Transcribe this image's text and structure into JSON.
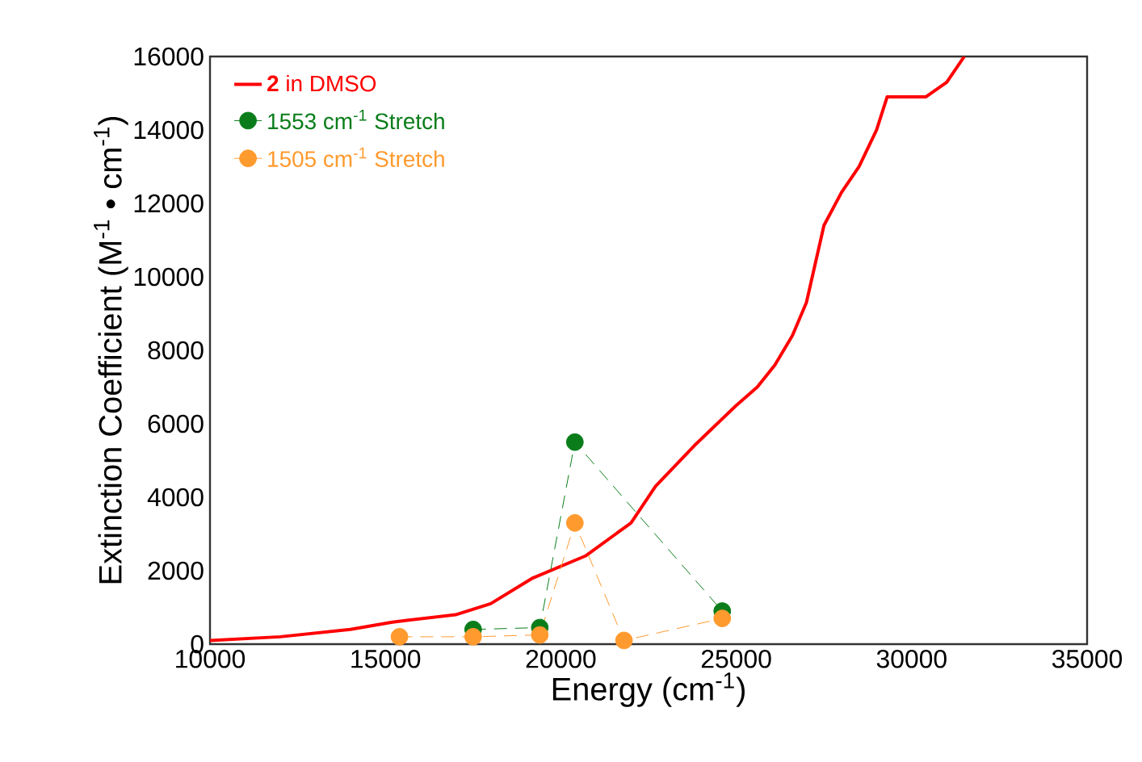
{
  "chart_data": {
    "type": "line",
    "xlabel": "Energy (cm$^{-1}$)",
    "ylabel": "Extinction Coefficient (M$^{-1}$ • cm$^{-1}$)",
    "xlim": [
      10000,
      35000
    ],
    "ylim": [
      0,
      16000
    ],
    "xticks": [
      10000,
      15000,
      20000,
      25000,
      30000,
      35000
    ],
    "yticks": [
      0,
      2000,
      4000,
      6000,
      8000,
      10000,
      12000,
      14000,
      16000
    ],
    "legend": "top left",
    "series": [
      {
        "name": "**2** in DMSO",
        "color": "#ff0000",
        "marker": "none",
        "line_style": "solid",
        "x": [
          10000,
          12000,
          14000,
          15200,
          17000,
          18000,
          19200,
          20700,
          22000,
          22700,
          23800,
          25000,
          25600,
          26100,
          26600,
          27000,
          27500,
          28000,
          28500,
          29000,
          29300,
          29700,
          30400,
          31000,
          31500
        ],
        "values": [
          100,
          200,
          400,
          600,
          800,
          1100,
          1800,
          2400,
          3300,
          4300,
          5400,
          6500,
          7000,
          7600,
          8400,
          9300,
          11400,
          12300,
          13000,
          14000,
          14900,
          14900,
          14900,
          15300,
          16000
        ]
      },
      {
        "name": "1553 cm$^{-1}$ Stretch",
        "color": "#0a7d1a",
        "marker": "circle",
        "line_style": "dashed",
        "x": [
          17500,
          19400,
          20400,
          24600
        ],
        "values": [
          400,
          450,
          5500,
          900
        ]
      },
      {
        "name": "1505 cm$^{-1}$ Stretch",
        "color": "#ff9a2e",
        "marker": "circle",
        "line_style": "dashed",
        "x": [
          15400,
          17500,
          19400,
          20400,
          21800,
          24600
        ],
        "values": [
          200,
          200,
          250,
          3300,
          100,
          700
        ]
      }
    ]
  }
}
